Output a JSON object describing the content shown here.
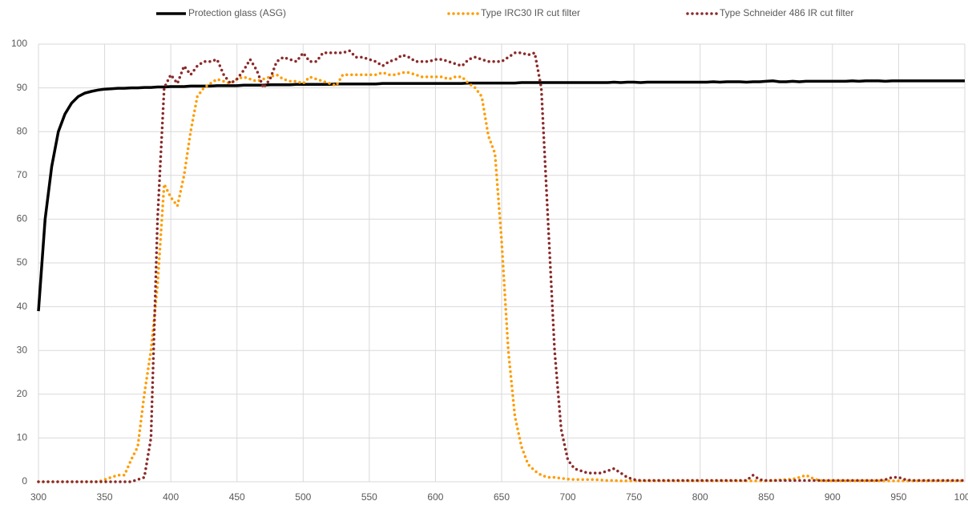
{
  "chart_data": {
    "type": "line",
    "x": [
      300,
      305,
      310,
      315,
      320,
      325,
      330,
      335,
      340,
      345,
      350,
      355,
      360,
      365,
      370,
      375,
      380,
      385,
      390,
      395,
      400,
      405,
      410,
      415,
      420,
      425,
      430,
      435,
      440,
      445,
      450,
      455,
      460,
      465,
      470,
      475,
      480,
      485,
      490,
      495,
      500,
      505,
      510,
      515,
      520,
      525,
      530,
      535,
      540,
      545,
      550,
      555,
      560,
      565,
      570,
      575,
      580,
      585,
      590,
      595,
      600,
      605,
      610,
      615,
      620,
      625,
      630,
      635,
      640,
      645,
      650,
      655,
      660,
      665,
      670,
      675,
      680,
      685,
      690,
      695,
      700,
      705,
      710,
      715,
      720,
      725,
      730,
      735,
      740,
      745,
      750,
      755,
      760,
      765,
      770,
      775,
      780,
      785,
      790,
      795,
      800,
      805,
      810,
      815,
      820,
      825,
      830,
      835,
      840,
      845,
      850,
      855,
      860,
      865,
      870,
      875,
      880,
      885,
      890,
      895,
      900,
      905,
      910,
      915,
      920,
      925,
      930,
      935,
      940,
      945,
      950,
      955,
      960,
      965,
      970,
      975,
      980,
      985,
      990,
      995,
      1000
    ],
    "series": [
      {
        "name": "Protection glass (ASG)",
        "color": "#000000",
        "style": "solid",
        "values": [
          39,
          60,
          72,
          80,
          84,
          86.5,
          88,
          88.8,
          89.2,
          89.5,
          89.7,
          89.8,
          89.9,
          89.9,
          90,
          90,
          90.1,
          90.1,
          90.2,
          90.2,
          90.3,
          90.3,
          90.3,
          90.4,
          90.4,
          90.4,
          90.4,
          90.5,
          90.5,
          90.5,
          90.5,
          90.6,
          90.6,
          90.6,
          90.6,
          90.7,
          90.7,
          90.7,
          90.7,
          90.8,
          90.8,
          90.8,
          90.8,
          90.8,
          90.8,
          90.9,
          90.9,
          90.9,
          90.9,
          90.9,
          90.9,
          90.9,
          91,
          91,
          91,
          91,
          91,
          91,
          91,
          91,
          91,
          91,
          91,
          91,
          91,
          91.1,
          91.1,
          91.1,
          91.1,
          91.1,
          91.1,
          91.1,
          91.1,
          91.2,
          91.2,
          91.2,
          91.2,
          91.2,
          91.2,
          91.2,
          91.2,
          91.2,
          91.2,
          91.2,
          91.2,
          91.2,
          91.2,
          91.3,
          91.2,
          91.3,
          91.3,
          91.2,
          91.3,
          91.3,
          91.3,
          91.3,
          91.3,
          91.3,
          91.3,
          91.3,
          91.3,
          91.3,
          91.4,
          91.3,
          91.4,
          91.4,
          91.4,
          91.3,
          91.4,
          91.4,
          91.5,
          91.6,
          91.4,
          91.4,
          91.5,
          91.4,
          91.5,
          91.5,
          91.5,
          91.5,
          91.5,
          91.5,
          91.5,
          91.6,
          91.5,
          91.6,
          91.6,
          91.6,
          91.5,
          91.6,
          91.6,
          91.6,
          91.6,
          91.6,
          91.6,
          91.6,
          91.6,
          91.6,
          91.6,
          91.6,
          91.6
        ]
      },
      {
        "name": "Type IRC30 IR cut filter",
        "color": "#ff9c00",
        "style": "dotted",
        "values": [
          0,
          0,
          0,
          0,
          0,
          0,
          0,
          0,
          0,
          0,
          0.5,
          1,
          1.5,
          1.5,
          5,
          8,
          20,
          30,
          45,
          68,
          65,
          63,
          70,
          80,
          88,
          90,
          91,
          92,
          91.5,
          91,
          92,
          92.5,
          92,
          91.5,
          92,
          92.5,
          93,
          92,
          91.5,
          91.5,
          91,
          92.5,
          92,
          91.5,
          91,
          90.5,
          93,
          93,
          93,
          93,
          93,
          93,
          93.5,
          93,
          93,
          93.5,
          93.5,
          93,
          92.5,
          92.5,
          92.5,
          92.5,
          92,
          92.5,
          92.5,
          91,
          90,
          88,
          79,
          75,
          55,
          30,
          15,
          8,
          4,
          2.5,
          1.5,
          1,
          1,
          0.8,
          0.6,
          0.5,
          0.5,
          0.5,
          0.5,
          0.4,
          0.3,
          0.3,
          0.2,
          0.2,
          0.2,
          0.2,
          0.2,
          0.2,
          0.2,
          0.2,
          0.2,
          0.2,
          0.2,
          0.2,
          0.2,
          0.2,
          0.2,
          0.2,
          0.2,
          0.2,
          0.2,
          0.2,
          0.2,
          0.2,
          0.2,
          0.3,
          0.4,
          0.5,
          0.6,
          1,
          1.5,
          0.8,
          0.3,
          0.2,
          0.2,
          0.2,
          0.2,
          0.2,
          0.2,
          0.2,
          0.2,
          0.2,
          0.2,
          0.2,
          0.2,
          0.2,
          0.2,
          0.2,
          0.2,
          0.2,
          0.2,
          0.2,
          0.2,
          0.2,
          0.2
        ]
      },
      {
        "name": "Type Schneider 486 IR cut filter",
        "color": "#8b2a2a",
        "style": "dotted",
        "values": [
          0,
          0,
          0,
          0,
          0,
          0,
          0,
          0,
          0,
          0,
          0,
          0,
          0,
          0,
          0,
          0.5,
          1,
          10,
          60,
          90,
          93,
          91,
          95,
          93,
          95,
          96,
          96,
          96.5,
          93,
          91,
          92,
          94,
          96.5,
          94,
          90,
          92,
          96,
          97,
          96.5,
          96,
          98,
          96,
          96,
          98,
          98,
          98,
          98,
          98.5,
          97,
          97,
          96.5,
          96,
          95,
          96,
          96.5,
          97.5,
          97,
          96,
          96,
          96,
          96.5,
          96.5,
          96,
          95.5,
          95,
          96.5,
          97,
          96.5,
          96,
          96,
          96,
          97,
          98,
          98,
          97.5,
          98,
          90,
          60,
          30,
          12,
          5,
          3,
          2.5,
          2,
          2,
          2,
          2.5,
          3,
          2,
          1,
          0.5,
          0.3,
          0.3,
          0.3,
          0.3,
          0.3,
          0.3,
          0.3,
          0.3,
          0.3,
          0.3,
          0.3,
          0.3,
          0.3,
          0.3,
          0.3,
          0.3,
          0.3,
          1.5,
          0.5,
          0.3,
          0.3,
          0.3,
          0.3,
          0.3,
          0.3,
          0.3,
          0.3,
          0.3,
          0.3,
          0.3,
          0.3,
          0.3,
          0.3,
          0.3,
          0.3,
          0.3,
          0.3,
          0.5,
          1,
          1,
          0.5,
          0.3,
          0.3,
          0.3,
          0.3,
          0.3,
          0.3,
          0.3,
          0.3,
          0.3
        ]
      }
    ],
    "xlim": [
      300,
      1000
    ],
    "ylim": [
      0,
      100
    ],
    "xticks": [
      300,
      350,
      400,
      450,
      500,
      550,
      600,
      650,
      700,
      750,
      800,
      850,
      900,
      950,
      1000
    ],
    "yticks": [
      0,
      10,
      20,
      30,
      40,
      50,
      60,
      70,
      80,
      90,
      100
    ],
    "grid": true,
    "legend": "top"
  }
}
